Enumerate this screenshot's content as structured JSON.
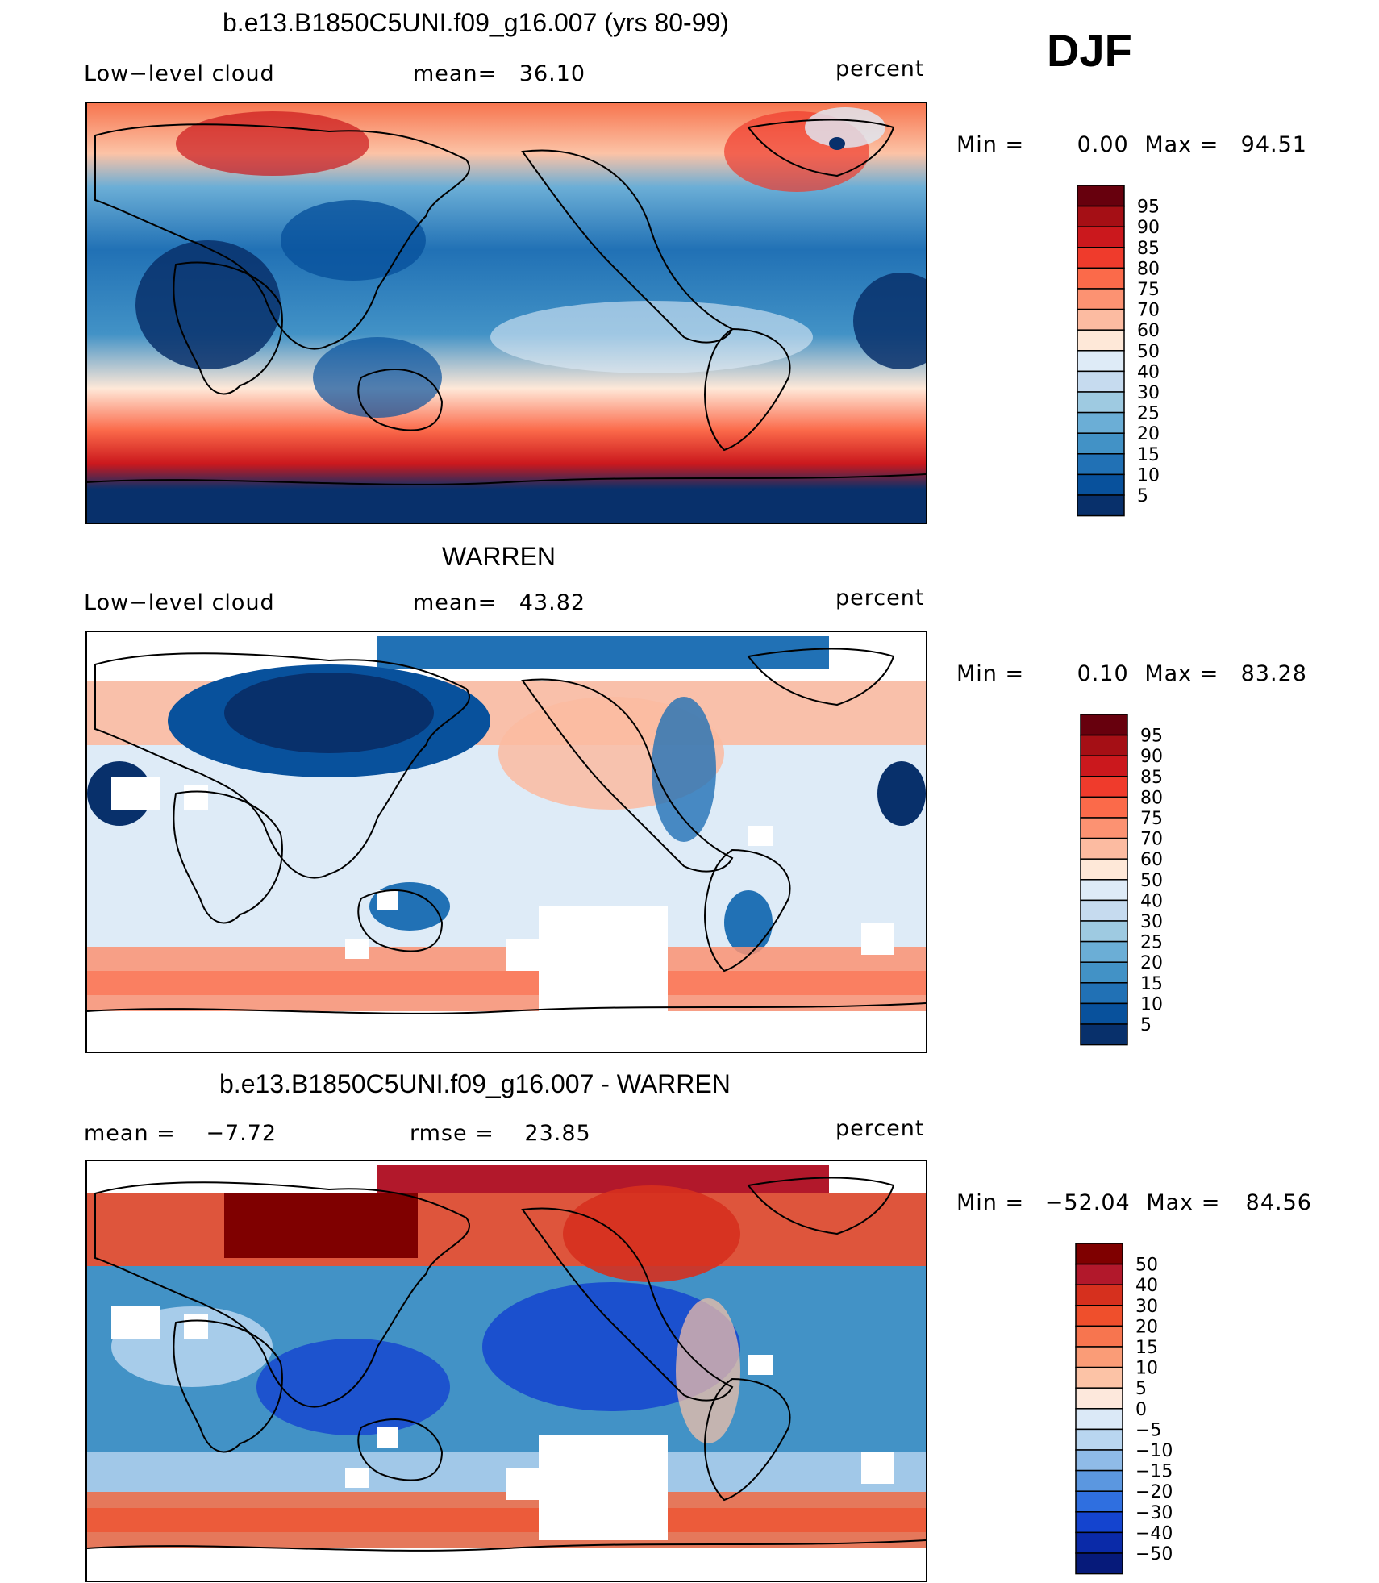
{
  "season": "DJF",
  "units": "percent",
  "panels": [
    {
      "title": "b.e13.B1850C5UNI.f09_g16.007 (yrs 80-99)",
      "left_label": "Low−level cloud",
      "stat_label": "mean=",
      "stat_value": "36.10",
      "units": "percent",
      "min_label": "Min =",
      "min_value": "0.00",
      "max_label": "Max =",
      "max_value": "94.51",
      "colorbar_labels": [
        "95",
        "90",
        "85",
        "80",
        "75",
        "70",
        "60",
        "50",
        "40",
        "30",
        "25",
        "20",
        "15",
        "10",
        "5"
      ]
    },
    {
      "title": "WARREN",
      "left_label": "Low−level cloud",
      "stat_label": "mean=",
      "stat_value": "43.82",
      "units": "percent",
      "min_label": "Min =",
      "min_value": "0.10",
      "max_label": "Max =",
      "max_value": "83.28",
      "colorbar_labels": [
        "95",
        "90",
        "85",
        "80",
        "75",
        "70",
        "60",
        "50",
        "40",
        "30",
        "25",
        "20",
        "15",
        "10",
        "5"
      ]
    },
    {
      "title": "b.e13.B1850C5UNI.f09_g16.007 - WARREN",
      "left_label": "mean =",
      "left_value": "−7.72",
      "stat_label": "rmse =",
      "stat_value": "23.85",
      "units": "percent",
      "min_label": "Min =",
      "min_value": "−52.04",
      "max_label": "Max =",
      "max_value": "84.56",
      "colorbar_labels": [
        "50",
        "40",
        "30",
        "20",
        "15",
        "10",
        "5",
        "0",
        "−5",
        "−10",
        "−15",
        "−20",
        "−30",
        "−40",
        "−50"
      ]
    }
  ],
  "colors": {
    "scale_16": [
      "#67000d",
      "#a50f15",
      "#cb181d",
      "#ef3b2c",
      "#fb6a4a",
      "#fc9272",
      "#fcbba1",
      "#fee8d8",
      "#deebf7",
      "#c6dbef",
      "#9ecae1",
      "#6baed6",
      "#4292c6",
      "#2171b5",
      "#08519c",
      "#08306b"
    ],
    "diverging": [
      "#7f0000",
      "#b2182b",
      "#d6301e",
      "#ef4f2c",
      "#f7754f",
      "#fa9c77",
      "#fcc3a6",
      "#fde8dc",
      "#dbe9f7",
      "#b9d6f0",
      "#8fbbe8",
      "#5b97e0",
      "#2f6fe0",
      "#1444cf",
      "#0a2aa8",
      "#061a7a"
    ],
    "land_outline": "#000000",
    "missing": "#ffffff"
  }
}
